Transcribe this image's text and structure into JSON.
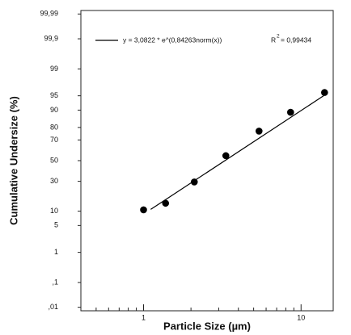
{
  "chart_data": {
    "type": "probability-scatter",
    "xlabel": "Particle Size (µm)",
    "ylabel": "Cumulative Undersize (%)",
    "xscale": "log",
    "yscale": "probability",
    "xlim": [
      0.4,
      16
    ],
    "ylim": [
      0.007,
      99.993
    ],
    "xticks": [
      1,
      10
    ],
    "xminor_ticks": [
      0.5,
      0.6,
      0.7,
      0.8,
      0.9,
      2,
      3,
      4,
      5,
      6,
      7,
      8,
      9
    ],
    "yticks": [
      {
        "value": 99.99,
        "label": "99,99"
      },
      {
        "value": 99.9,
        "label": "99,9"
      },
      99,
      95,
      90,
      80,
      70,
      50,
      30,
      10,
      5,
      1,
      {
        "value": 0.1,
        "label": ",1"
      },
      {
        "value": 0.01,
        "label": ",01"
      }
    ],
    "series": [
      {
        "kind": "points",
        "color": "#000000",
        "x": [
          1.0,
          1.38,
          2.1,
          3.33,
          5.41,
          8.58,
          14.1
        ],
        "values": [
          10.6,
          14,
          29.4,
          55,
          77.3,
          89,
          95.8
        ]
      },
      {
        "kind": "line",
        "name": "y = 3,0822 * e^(0,84263norm(x))",
        "color": "#000000",
        "x": [
          1.11,
          13.9
        ],
        "values": [
          10.8,
          95
        ]
      }
    ],
    "r2_label": "R",
    "r2_sup": "2",
    "r2_value": "= 0,99434"
  }
}
